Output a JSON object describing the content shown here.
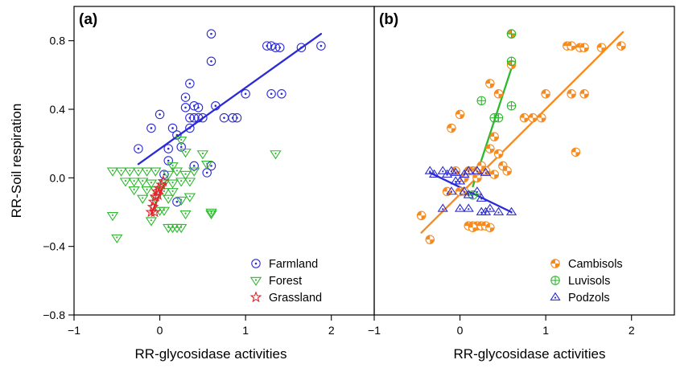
{
  "figure": {
    "ylabel": "RR-Soil respiration"
  },
  "chart_data": [
    {
      "type": "scatter",
      "panel_label": "(a)",
      "xlabel": "RR-glycosidase activities",
      "ylabel": "RR-Soil respiration",
      "xlim": [
        -1,
        2.5
      ],
      "ylim": [
        -0.8,
        1.0
      ],
      "xticks": [
        -1,
        0,
        1,
        2
      ],
      "yticks": [
        -0.8,
        -0.4,
        0.0,
        0.4,
        0.8
      ],
      "xtick_labels": [
        "−1",
        "0",
        "1",
        "2"
      ],
      "ytick_labels": [
        "−0.8",
        "−0.4",
        "0.0",
        "0.4",
        "0.8"
      ],
      "legend_position": "bottom-right",
      "series": [
        {
          "name": "Farmland",
          "marker": "circle-dot",
          "color": "#2b2bd6",
          "points": [
            [
              -0.25,
              0.17
            ],
            [
              -0.1,
              0.29
            ],
            [
              0.0,
              0.37
            ],
            [
              0.1,
              0.17
            ],
            [
              0.15,
              0.29
            ],
            [
              0.2,
              0.25
            ],
            [
              0.25,
              0.18
            ],
            [
              0.3,
              0.47
            ],
            [
              0.3,
              0.41
            ],
            [
              0.35,
              0.35
            ],
            [
              0.35,
              0.29
            ],
            [
              0.4,
              0.42
            ],
            [
              0.45,
              0.41
            ],
            [
              0.4,
              0.35
            ],
            [
              0.45,
              0.35
            ],
            [
              0.5,
              0.35
            ],
            [
              0.35,
              0.55
            ],
            [
              0.6,
              0.84
            ],
            [
              0.6,
              0.68
            ],
            [
              0.65,
              0.42
            ],
            [
              0.75,
              0.35
            ],
            [
              0.85,
              0.35
            ],
            [
              0.9,
              0.35
            ],
            [
              1.0,
              0.49
            ],
            [
              1.25,
              0.77
            ],
            [
              1.3,
              0.77
            ],
            [
              1.3,
              0.49
            ],
            [
              1.35,
              0.76
            ],
            [
              1.4,
              0.76
            ],
            [
              1.42,
              0.49
            ],
            [
              1.65,
              0.76
            ],
            [
              1.88,
              0.77
            ],
            [
              0.4,
              0.07
            ],
            [
              0.6,
              0.07
            ],
            [
              0.55,
              0.03
            ],
            [
              0.2,
              -0.14
            ],
            [
              0.1,
              0.1
            ],
            [
              0.05,
              0.02
            ]
          ],
          "trend": [
            [
              -0.25,
              0.08
            ],
            [
              1.88,
              0.84
            ]
          ]
        },
        {
          "name": "Forest",
          "marker": "triangle-down-dot",
          "color": "#2db82d",
          "points": [
            [
              -0.55,
              0.04
            ],
            [
              -0.45,
              0.04
            ],
            [
              -0.35,
              0.04
            ],
            [
              -0.25,
              0.04
            ],
            [
              -0.15,
              0.04
            ],
            [
              -0.05,
              0.04
            ],
            [
              -0.4,
              -0.02
            ],
            [
              -0.3,
              -0.02
            ],
            [
              -0.2,
              -0.02
            ],
            [
              -0.1,
              -0.03
            ],
            [
              0.05,
              -0.03
            ],
            [
              0.15,
              -0.03
            ],
            [
              0.25,
              -0.02
            ],
            [
              0.35,
              -0.02
            ],
            [
              -0.3,
              -0.07
            ],
            [
              -0.15,
              -0.07
            ],
            [
              -0.05,
              -0.07
            ],
            [
              0.05,
              -0.08
            ],
            [
              0.15,
              -0.08
            ],
            [
              -0.2,
              -0.12
            ],
            [
              -0.05,
              -0.12
            ],
            [
              0.1,
              -0.12
            ],
            [
              0.25,
              -0.13
            ],
            [
              0.35,
              -0.11
            ],
            [
              0.1,
              0.02
            ],
            [
              0.15,
              0.07
            ],
            [
              0.2,
              0.04
            ],
            [
              0.3,
              0.02
            ],
            [
              0.4,
              0.04
            ],
            [
              0.25,
              0.22
            ],
            [
              0.3,
              0.15
            ],
            [
              0.5,
              0.14
            ],
            [
              0.55,
              0.08
            ],
            [
              -0.55,
              -0.22
            ],
            [
              -0.5,
              -0.35
            ],
            [
              0.0,
              -0.19
            ],
            [
              0.05,
              -0.19
            ],
            [
              0.3,
              -0.21
            ],
            [
              0.6,
              -0.2
            ],
            [
              0.6,
              -0.21
            ],
            [
              0.1,
              -0.29
            ],
            [
              0.15,
              -0.29
            ],
            [
              0.25,
              -0.29
            ],
            [
              0.2,
              -0.29
            ],
            [
              1.35,
              0.14
            ],
            [
              -0.1,
              -0.25
            ]
          ],
          "trend": null
        },
        {
          "name": "Grassland",
          "marker": "star",
          "color": "#e0232b",
          "points": [
            [
              -0.1,
              -0.2
            ],
            [
              -0.08,
              -0.17
            ],
            [
              -0.07,
              -0.14
            ],
            [
              -0.05,
              -0.11
            ],
            [
              -0.03,
              -0.08
            ],
            [
              -0.01,
              -0.06
            ],
            [
              0.02,
              -0.04
            ],
            [
              0.04,
              -0.02
            ],
            [
              -0.06,
              -0.2
            ],
            [
              -0.02,
              -0.1
            ]
          ],
          "trend": [
            [
              -0.1,
              -0.21
            ],
            [
              0.05,
              -0.04
            ]
          ]
        }
      ]
    },
    {
      "type": "scatter",
      "panel_label": "(b)",
      "xlabel": "RR-glycosidase activities",
      "ylabel": "",
      "xlim": [
        -1,
        2.5
      ],
      "ylim": [
        -0.8,
        1.0
      ],
      "xticks": [
        -1,
        0,
        1,
        2
      ],
      "xtick_labels": [
        "−1",
        "0",
        "1",
        "2"
      ],
      "legend_position": "bottom-right",
      "series": [
        {
          "name": "Cambisols",
          "marker": "circle-half",
          "color": "#f58a1f",
          "points": [
            [
              -0.45,
              -0.22
            ],
            [
              -0.35,
              -0.36
            ],
            [
              -0.15,
              -0.08
            ],
            [
              -0.1,
              0.29
            ],
            [
              -0.05,
              0.04
            ],
            [
              0.0,
              0.37
            ],
            [
              0.0,
              -0.08
            ],
            [
              0.05,
              -0.08
            ],
            [
              0.05,
              0.0
            ],
            [
              0.1,
              0.04
            ],
            [
              0.15,
              0.04
            ],
            [
              0.2,
              0.0
            ],
            [
              0.2,
              0.04
            ],
            [
              0.25,
              0.07
            ],
            [
              0.3,
              0.04
            ],
            [
              0.35,
              0.17
            ],
            [
              0.4,
              0.02
            ],
            [
              0.4,
              0.24
            ],
            [
              0.45,
              0.14
            ],
            [
              0.5,
              0.07
            ],
            [
              0.55,
              0.04
            ],
            [
              0.35,
              0.55
            ],
            [
              0.45,
              0.49
            ],
            [
              0.6,
              0.84
            ],
            [
              0.6,
              0.66
            ],
            [
              0.75,
              0.35
            ],
            [
              0.85,
              0.35
            ],
            [
              0.95,
              0.35
            ],
            [
              1.0,
              0.49
            ],
            [
              1.25,
              0.77
            ],
            [
              1.3,
              0.77
            ],
            [
              1.3,
              0.49
            ],
            [
              1.35,
              0.15
            ],
            [
              1.4,
              0.76
            ],
            [
              1.45,
              0.76
            ],
            [
              1.45,
              0.49
            ],
            [
              1.65,
              0.76
            ],
            [
              1.88,
              0.77
            ],
            [
              0.1,
              -0.28
            ],
            [
              0.15,
              -0.28
            ],
            [
              0.2,
              -0.28
            ],
            [
              0.25,
              -0.28
            ],
            [
              0.3,
              -0.28
            ],
            [
              0.35,
              -0.29
            ],
            [
              0.15,
              -0.29
            ]
          ],
          "trend": [
            [
              -0.45,
              -0.32
            ],
            [
              1.9,
              0.85
            ]
          ]
        },
        {
          "name": "Luvisols",
          "marker": "circle-plus",
          "color": "#2db82d",
          "points": [
            [
              0.25,
              0.45
            ],
            [
              0.4,
              0.35
            ],
            [
              0.45,
              0.35
            ],
            [
              0.6,
              0.84
            ],
            [
              0.6,
              0.68
            ],
            [
              0.6,
              0.42
            ],
            [
              0.15,
              -0.1
            ]
          ],
          "trend": [
            [
              0.15,
              -0.05
            ],
            [
              0.62,
              0.67
            ]
          ]
        },
        {
          "name": "Podzols",
          "marker": "triangle-up-dot",
          "color": "#2b2bd6",
          "points": [
            [
              -0.35,
              0.04
            ],
            [
              -0.3,
              0.02
            ],
            [
              -0.2,
              0.04
            ],
            [
              -0.15,
              0.02
            ],
            [
              -0.1,
              0.04
            ],
            [
              -0.05,
              0.03
            ],
            [
              0.05,
              0.02
            ],
            [
              0.1,
              0.04
            ],
            [
              0.2,
              0.04
            ],
            [
              0.3,
              0.03
            ],
            [
              -0.1,
              -0.08
            ],
            [
              -0.05,
              -0.02
            ],
            [
              0.0,
              -0.02
            ],
            [
              0.05,
              -0.08
            ],
            [
              0.1,
              -0.1
            ],
            [
              0.2,
              -0.08
            ],
            [
              0.25,
              -0.12
            ],
            [
              -0.2,
              -0.18
            ],
            [
              0.0,
              -0.18
            ],
            [
              0.1,
              -0.18
            ],
            [
              0.35,
              -0.18
            ],
            [
              0.45,
              -0.2
            ],
            [
              0.6,
              -0.2
            ],
            [
              0.3,
              -0.2
            ],
            [
              0.25,
              -0.2
            ]
          ],
          "trend": [
            [
              -0.35,
              0.03
            ],
            [
              0.6,
              -0.2
            ]
          ]
        }
      ]
    }
  ]
}
